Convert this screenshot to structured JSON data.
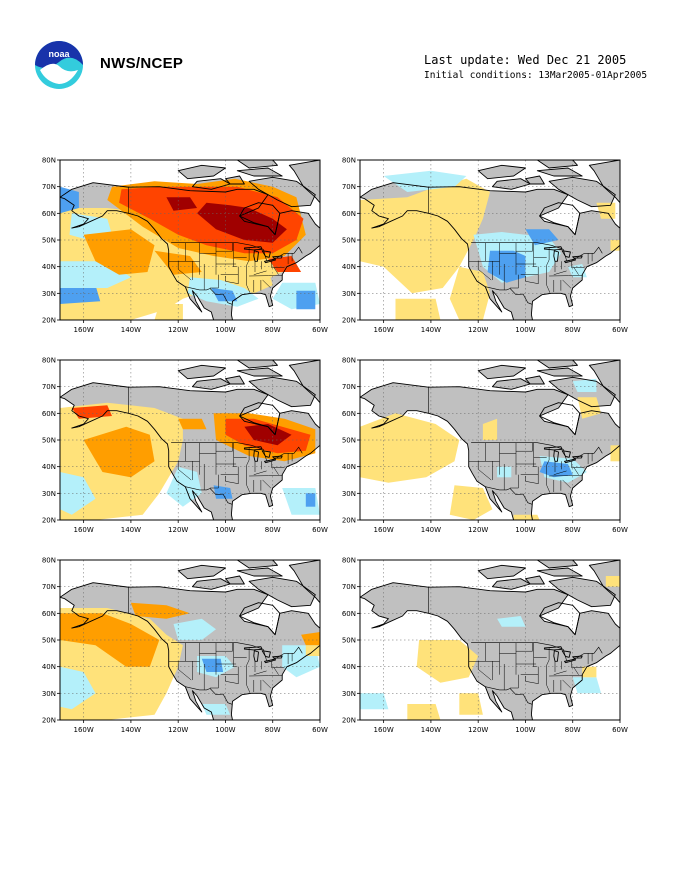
{
  "header": {
    "org_name": "NWS/NCEP",
    "logo_text": "noaa",
    "last_update": "Last update: Wed Dec 21 2005",
    "initial_conditions": "Initial conditions: 13Mar2005-01Apr2005"
  },
  "colors": {
    "land_neutral": "#c0c0c0",
    "ocean_neutral": "#ffffff",
    "light_orange": "#ffe27a",
    "orange": "#ff9e00",
    "red_orange": "#ff4400",
    "dark_red": "#a00000",
    "light_blue": "#b4f0fa",
    "blue": "#4ea0f0",
    "coastline": "#000000"
  },
  "axes": {
    "lat_labels": [
      "80N",
      "70N",
      "60N",
      "50N",
      "40N",
      "30N",
      "20N"
    ],
    "lon_labels": [
      "160W",
      "140W",
      "120W",
      "100W",
      "80W",
      "60W"
    ]
  },
  "panels": [
    {
      "id": "p1",
      "anomaly": "strong warm Canada"
    },
    {
      "id": "p2",
      "anomaly": "weak cool west US"
    },
    {
      "id": "p3",
      "anomaly": "warm east Canada"
    },
    {
      "id": "p4",
      "anomaly": "weak cool Ohio valley"
    },
    {
      "id": "p5",
      "anomaly": "warm NE Pacific"
    },
    {
      "id": "p6",
      "anomaly": "near neutral"
    }
  ]
}
